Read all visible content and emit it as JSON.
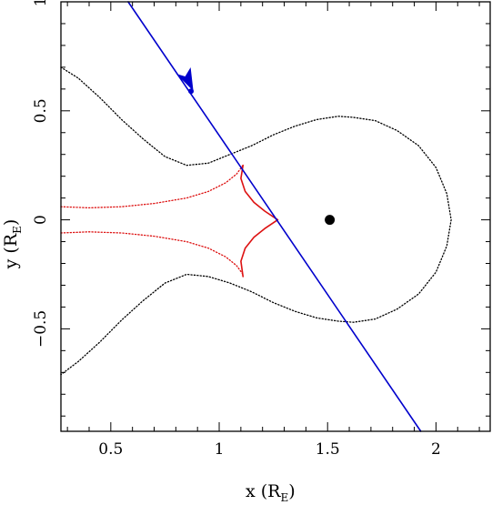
{
  "chart_data": {
    "type": "line",
    "xlabel": {
      "text": "x (R",
      "sub": "E",
      "close": ")"
    },
    "ylabel": {
      "text": "y (R",
      "sub": "E",
      "close": ")"
    },
    "xlim": [
      0.27,
      2.25
    ],
    "ylim": [
      -0.97,
      1.0
    ],
    "xticks": [
      0.5,
      1,
      1.5,
      2
    ],
    "xtick_labels": [
      "0.5",
      "1",
      "1.5",
      "2"
    ],
    "yticks": [
      -0.5,
      0,
      0.5,
      1
    ],
    "ytick_labels": [
      "−0.5",
      "0",
      "0.5",
      "1"
    ],
    "grid": false,
    "legend": "none",
    "colors": {
      "critical_curve": "#000000",
      "caustic": "#dd1111",
      "trajectory": "#0000cc",
      "lens": "#000000"
    },
    "series": [
      {
        "style": "dotted-black",
        "points": [
          [
            0.27,
            0.7
          ],
          [
            0.35,
            0.65
          ],
          [
            0.45,
            0.56
          ],
          [
            0.55,
            0.46
          ],
          [
            0.65,
            0.37
          ],
          [
            0.75,
            0.29
          ],
          [
            0.85,
            0.25
          ],
          [
            0.95,
            0.26
          ],
          [
            1.05,
            0.3
          ],
          [
            1.15,
            0.34
          ],
          [
            1.25,
            0.39
          ],
          [
            1.35,
            0.43
          ],
          [
            1.45,
            0.46
          ],
          [
            1.55,
            0.475
          ],
          [
            1.62,
            0.47
          ],
          [
            1.72,
            0.455
          ],
          [
            1.82,
            0.41
          ],
          [
            1.92,
            0.34
          ],
          [
            2.0,
            0.24
          ],
          [
            2.05,
            0.12
          ],
          [
            2.07,
            0.0
          ],
          [
            2.05,
            -0.12
          ],
          [
            2.0,
            -0.24
          ],
          [
            1.92,
            -0.34
          ],
          [
            1.82,
            -0.41
          ],
          [
            1.72,
            -0.455
          ],
          [
            1.62,
            -0.47
          ],
          [
            1.55,
            -0.465
          ],
          [
            1.45,
            -0.45
          ],
          [
            1.35,
            -0.42
          ],
          [
            1.25,
            -0.38
          ],
          [
            1.15,
            -0.33
          ],
          [
            1.05,
            -0.29
          ],
          [
            0.95,
            -0.26
          ],
          [
            0.85,
            -0.25
          ],
          [
            0.75,
            -0.29
          ],
          [
            0.65,
            -0.37
          ],
          [
            0.55,
            -0.46
          ],
          [
            0.45,
            -0.56
          ],
          [
            0.35,
            -0.65
          ],
          [
            0.27,
            -0.71
          ]
        ]
      },
      {
        "style": "dotted-red",
        "points": [
          [
            0.27,
            0.06
          ],
          [
            0.4,
            0.055
          ],
          [
            0.55,
            0.06
          ],
          [
            0.7,
            0.075
          ],
          [
            0.85,
            0.1
          ],
          [
            0.95,
            0.13
          ],
          [
            1.03,
            0.17
          ],
          [
            1.08,
            0.21
          ],
          [
            1.11,
            0.25
          ]
        ]
      },
      {
        "style": "dotted-red",
        "points": [
          [
            0.27,
            -0.06
          ],
          [
            0.4,
            -0.055
          ],
          [
            0.55,
            -0.06
          ],
          [
            0.7,
            -0.075
          ],
          [
            0.85,
            -0.1
          ],
          [
            0.95,
            -0.13
          ],
          [
            1.03,
            -0.17
          ],
          [
            1.08,
            -0.21
          ],
          [
            1.11,
            -0.25
          ]
        ]
      },
      {
        "style": "solid-red",
        "points": [
          [
            1.11,
            0.25
          ],
          [
            1.1,
            0.19
          ],
          [
            1.12,
            0.13
          ],
          [
            1.16,
            0.08
          ],
          [
            1.21,
            0.04
          ],
          [
            1.27,
            0.0
          ],
          [
            1.21,
            -0.04
          ],
          [
            1.16,
            -0.08
          ],
          [
            1.12,
            -0.13
          ],
          [
            1.1,
            -0.19
          ],
          [
            1.11,
            -0.26
          ]
        ]
      },
      {
        "style": "solid-blue",
        "points": [
          [
            0.58,
            1.0
          ],
          [
            1.93,
            -0.97
          ]
        ]
      }
    ],
    "markers": [
      {
        "name": "lens-point",
        "x": 1.51,
        "y": 0.0,
        "style": "large-black"
      },
      {
        "name": "trajectory-dot",
        "x": 0.87,
        "y": 0.59,
        "style": "small-blue"
      },
      {
        "name": "trajectory-arrow",
        "x": 0.86,
        "y": 0.62,
        "style": "arrow-blue"
      }
    ]
  }
}
